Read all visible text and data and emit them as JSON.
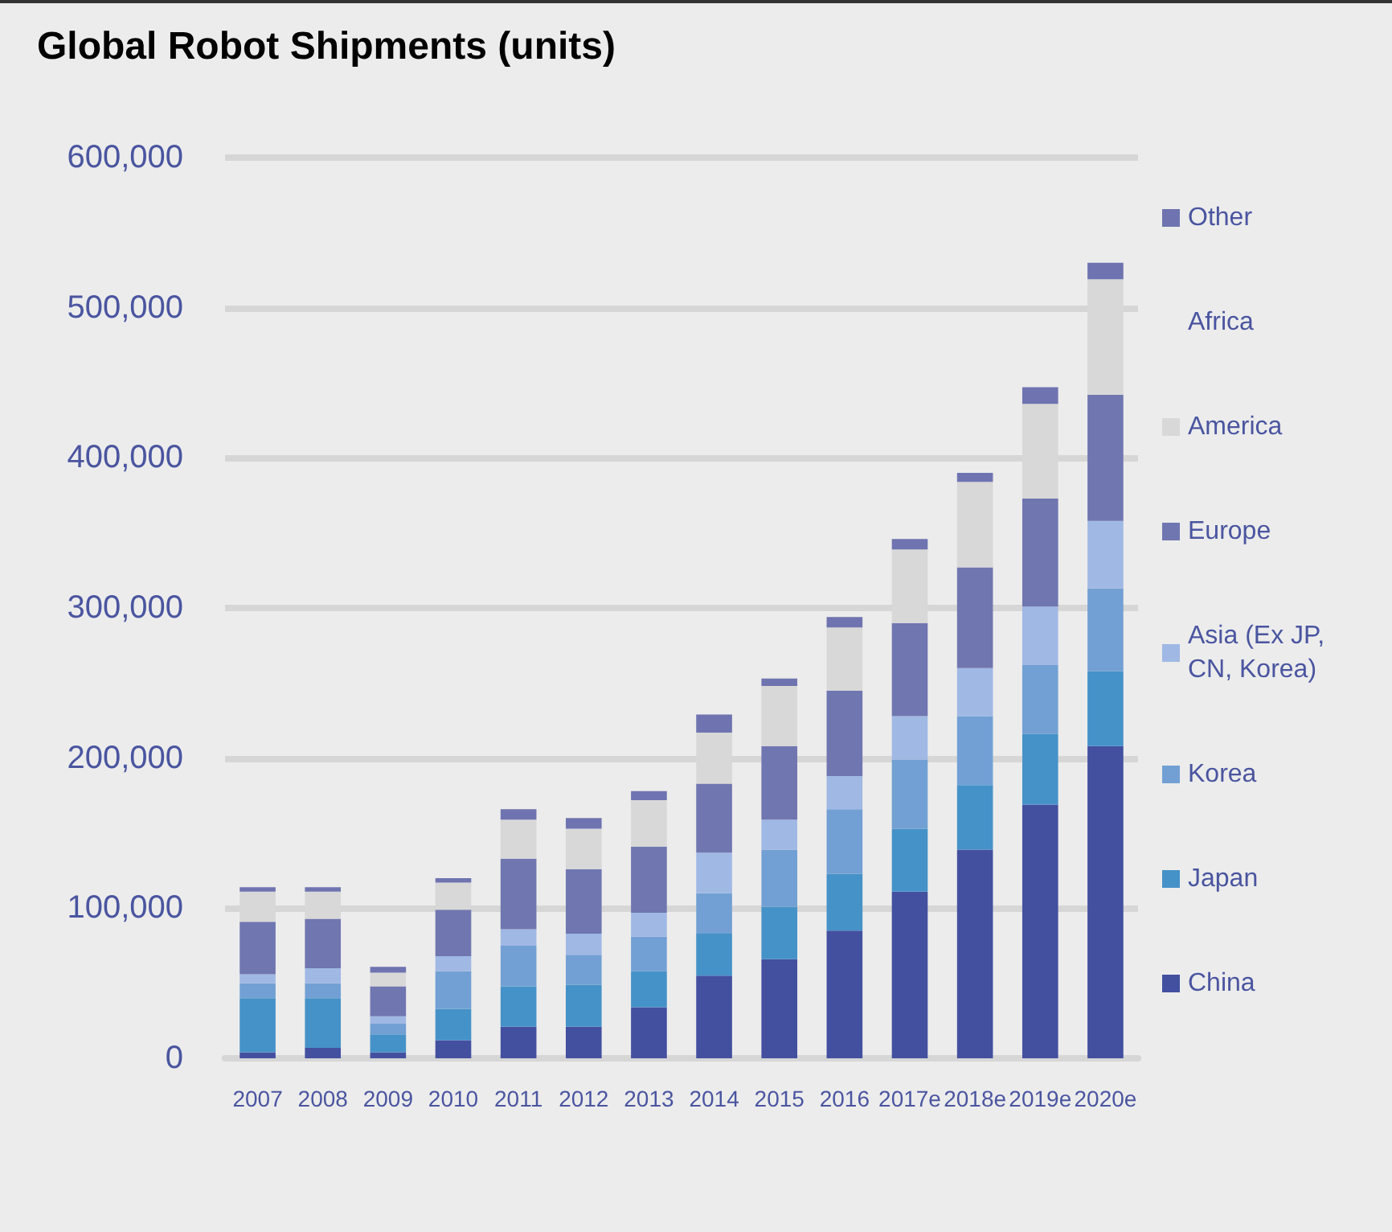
{
  "chart_data": {
    "type": "bar",
    "title": "Global Robot Shipments (units)",
    "stacked": true,
    "grid": "y",
    "legend": "right",
    "categories": [
      "2007",
      "2008",
      "2009",
      "2010",
      "2011",
      "2012",
      "2013",
      "2014",
      "2015",
      "2016",
      "2017e",
      "2018e",
      "2019e",
      "2020e"
    ],
    "ylim": [
      0,
      600000
    ],
    "yticks": [
      0,
      {
        "value": 100000,
        "label": "100,000"
      },
      {
        "value": 200000,
        "label": "200,000"
      },
      {
        "value": 300000,
        "label": "300,000"
      },
      {
        "value": 400000,
        "label": "400,000"
      },
      {
        "value": 500000,
        "label": "500,000"
      },
      {
        "value": 600000,
        "label": "600,000"
      }
    ],
    "series": [
      {
        "name": "China",
        "color": "#4350a0",
        "values": [
          4000,
          7000,
          4000,
          12000,
          21000,
          21000,
          34000,
          55000,
          66000,
          85000,
          111000,
          139000,
          169000,
          208000
        ]
      },
      {
        "name": "Japan",
        "color": "#4592c8",
        "values": [
          36000,
          33000,
          12000,
          21000,
          27000,
          28000,
          24000,
          28000,
          35000,
          38000,
          42000,
          43000,
          47000,
          50000
        ]
      },
      {
        "name": "Korea",
        "color": "#72a0d4",
        "values": [
          10000,
          10000,
          7000,
          25000,
          27000,
          20000,
          23000,
          27000,
          38000,
          43000,
          46000,
          46000,
          46000,
          55000
        ]
      },
      {
        "name": "Asia (Ex JP, CN, Korea)",
        "color": "#a0b8e4",
        "values": [
          6000,
          10000,
          5000,
          10000,
          11000,
          14000,
          16000,
          27000,
          20000,
          22000,
          29000,
          32000,
          39000,
          45000
        ]
      },
      {
        "name": "Europe",
        "color": "#7076b0",
        "values": [
          35000,
          33000,
          20000,
          31000,
          47000,
          43000,
          44000,
          46000,
          49000,
          57000,
          62000,
          67000,
          72000,
          84000
        ]
      },
      {
        "name": "America",
        "color": "#d8d8d8",
        "values": [
          20000,
          18000,
          9000,
          18000,
          26000,
          27000,
          31000,
          34000,
          40000,
          42000,
          49000,
          57000,
          63000,
          77000
        ]
      },
      {
        "name": "Africa",
        "values": [
          null,
          null,
          null,
          null,
          null,
          null,
          null,
          null,
          null,
          null,
          null,
          null,
          null,
          null
        ]
      },
      {
        "name": "Other",
        "color": "#6f74b0",
        "values": [
          3000,
          3000,
          4000,
          3000,
          7000,
          7000,
          6000,
          12000,
          5000,
          7000,
          7000,
          6000,
          11000,
          11000
        ]
      }
    ]
  }
}
